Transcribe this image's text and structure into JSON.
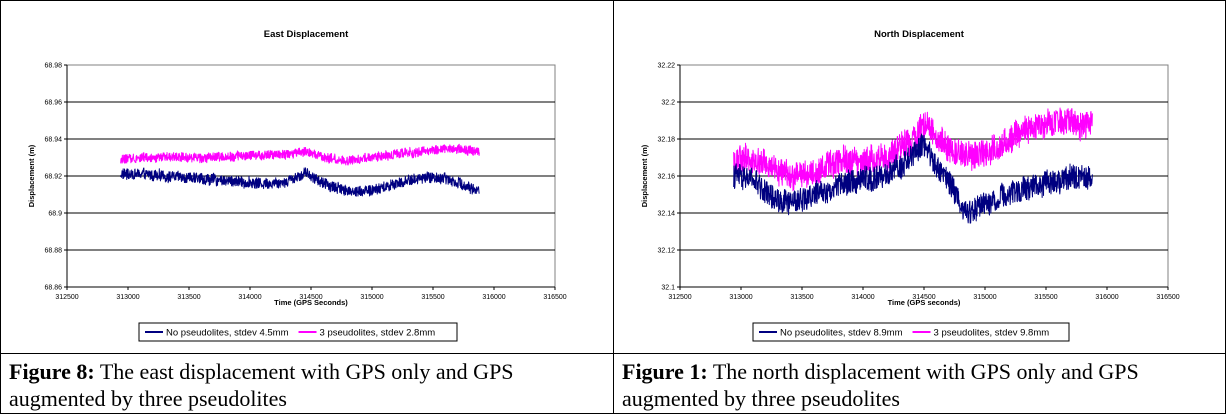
{
  "figures": [
    {
      "caption_label": "Figure 8:",
      "caption_text": " The east displacement with GPS only and GPS augmented by three pseudolites",
      "chart_data": {
        "type": "line",
        "title": "East Displacement",
        "xlabel": "Time (GPS Seconds)",
        "ylabel": "Displacement (m)",
        "xlim": [
          312500,
          316500
        ],
        "ylim": [
          68.86,
          68.98
        ],
        "xticks": [
          "312500",
          "313000",
          "313500",
          "314000",
          "314500",
          "315000",
          "315500",
          "316000",
          "316500"
        ],
        "yticks": [
          "68.86",
          "68.88",
          "68.9",
          "68.92",
          "68.94",
          "68.96",
          "68.98"
        ],
        "grid": "horizontal",
        "legend": "bottom",
        "series": [
          {
            "name": "No pseudolites, stdev 4.5mm",
            "color": "#000080",
            "x": [
              312940,
              313100,
              313300,
              313500,
              313700,
              313900,
              314100,
              314300,
              314450,
              314600,
              314800,
              315000,
              315200,
              315400,
              315600,
              315800,
              315880
            ],
            "y": [
              68.921,
              68.921,
              68.92,
              68.919,
              68.918,
              68.917,
              68.916,
              68.917,
              68.922,
              68.916,
              68.912,
              68.912,
              68.916,
              68.919,
              68.919,
              68.914,
              68.912
            ]
          },
          {
            "name": "3 pseudolites, stdev 2.8mm",
            "color": "#FF00FF",
            "x": [
              312940,
              313100,
              313300,
              313500,
              313700,
              313900,
              314100,
              314300,
              314450,
              314600,
              314800,
              315000,
              315200,
              315400,
              315600,
              315800,
              315880
            ],
            "y": [
              68.929,
              68.93,
              68.93,
              68.93,
              68.93,
              68.931,
              68.931,
              68.932,
              68.933,
              68.93,
              68.928,
              68.93,
              68.932,
              68.933,
              68.935,
              68.934,
              68.933
            ]
          }
        ]
      }
    },
    {
      "caption_label": "Figure 1:",
      "caption_text": " The north displacement with GPS only and GPS augmented by three pseudolites",
      "chart_data": {
        "type": "line",
        "title": "North Displacement",
        "xlabel": "Time (GPS seconds)",
        "ylabel": "Displacement (m)",
        "xlim": [
          312500,
          316500
        ],
        "ylim": [
          32.1,
          32.22
        ],
        "xticks": [
          "312500",
          "313000",
          "313500",
          "314000",
          "314500",
          "315000",
          "315500",
          "316000",
          "316500"
        ],
        "yticks": [
          "32.1",
          "32.12",
          "32.14",
          "32.16",
          "32.18",
          "32.2",
          "32.22"
        ],
        "grid": "horizontal",
        "legend": "bottom",
        "series": [
          {
            "name": "No pseudolites, stdev 8.9mm",
            "color": "#000080",
            "x": [
              312940,
              313100,
              313250,
              313400,
              313600,
              313800,
              314000,
              314200,
              314400,
              314500,
              314600,
              314700,
              314850,
              315000,
              315200,
              315400,
              315600,
              315800,
              315880
            ],
            "y": [
              32.16,
              32.158,
              32.148,
              32.145,
              32.15,
              32.155,
              32.158,
              32.16,
              32.17,
              32.178,
              32.165,
              32.158,
              32.14,
              32.145,
              32.15,
              32.155,
              32.158,
              32.16,
              32.158
            ]
          },
          {
            "name": "3 pseudolites, stdev 9.8mm",
            "color": "#FF00FF",
            "x": [
              312940,
              313100,
              313250,
              313400,
              313600,
              313800,
              314000,
              314200,
              314400,
              314500,
              314600,
              314700,
              314850,
              315000,
              315200,
              315400,
              315600,
              315800,
              315880
            ],
            "y": [
              32.168,
              32.17,
              32.165,
              32.16,
              32.162,
              32.168,
              32.168,
              32.17,
              32.18,
              32.188,
              32.182,
              32.175,
              32.17,
              32.172,
              32.18,
              32.185,
              32.19,
              32.188,
              32.187
            ]
          }
        ]
      }
    }
  ]
}
